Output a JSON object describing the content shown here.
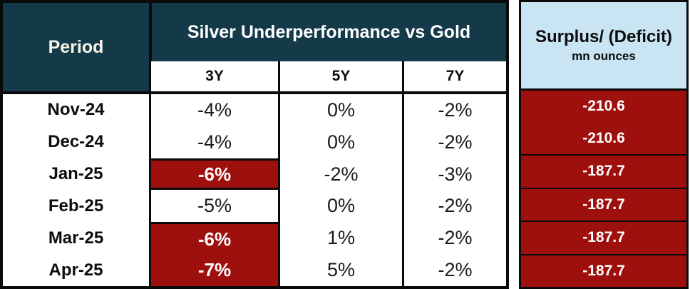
{
  "left_table": {
    "period_header": "Period",
    "group_header": "Silver Underperformance vs Gold",
    "columns": [
      "3Y",
      "5Y",
      "7Y"
    ],
    "rows": [
      {
        "period": "Nov-24",
        "y3": "-4%",
        "y5": "0%",
        "y7": "-2%",
        "y3_highlight": false
      },
      {
        "period": "Dec-24",
        "y3": "-4%",
        "y5": "0%",
        "y7": "-2%",
        "y3_highlight": false
      },
      {
        "period": "Jan-25",
        "y3": "-6%",
        "y5": "-2%",
        "y7": "-3%",
        "y3_highlight": true
      },
      {
        "period": "Feb-25",
        "y3": "-5%",
        "y5": "0%",
        "y7": "-2%",
        "y3_highlight": false
      },
      {
        "period": "Mar-25",
        "y3": "-6%",
        "y5": "1%",
        "y7": "-2%",
        "y3_highlight": true
      },
      {
        "period": "Apr-25",
        "y3": "-7%",
        "y5": "5%",
        "y7": "-2%",
        "y3_highlight": true
      }
    ]
  },
  "right_table": {
    "header_line1": "Surplus/ (Deficit)",
    "header_line2": "mn ounces",
    "values": [
      "-210.6",
      "-210.6",
      "-187.7",
      "-187.7",
      "-187.7",
      "-187.7"
    ]
  },
  "colors": {
    "header_navy": "#143948",
    "highlight_red": "#9e100e",
    "header_blue": "#c9e4f2",
    "border_black": "#0a0a0a"
  },
  "chart_data": {
    "type": "table",
    "title": "Silver Underperformance vs Gold",
    "columns": [
      "Period",
      "3Y",
      "5Y",
      "7Y",
      "Surplus/ (Deficit) mn ounces"
    ],
    "rows": [
      [
        "Nov-24",
        "-4%",
        "0%",
        "-2%",
        -210.6
      ],
      [
        "Dec-24",
        "-4%",
        "0%",
        "-2%",
        -210.6
      ],
      [
        "Jan-25",
        "-6%",
        "-2%",
        "-3%",
        -187.7
      ],
      [
        "Feb-25",
        "-5%",
        "0%",
        "-2%",
        -187.7
      ],
      [
        "Mar-25",
        "-6%",
        "1%",
        "-2%",
        -187.7
      ],
      [
        "Apr-25",
        "-7%",
        "5%",
        "-2%",
        -187.7
      ]
    ],
    "highlighted_3y_rows": [
      "Jan-25",
      "Mar-25",
      "Apr-25"
    ],
    "notes": "3Y cells for highlighted rows shown white-on-dark-red; all Surplus/(Deficit) cells shown white-on-dark-red"
  }
}
